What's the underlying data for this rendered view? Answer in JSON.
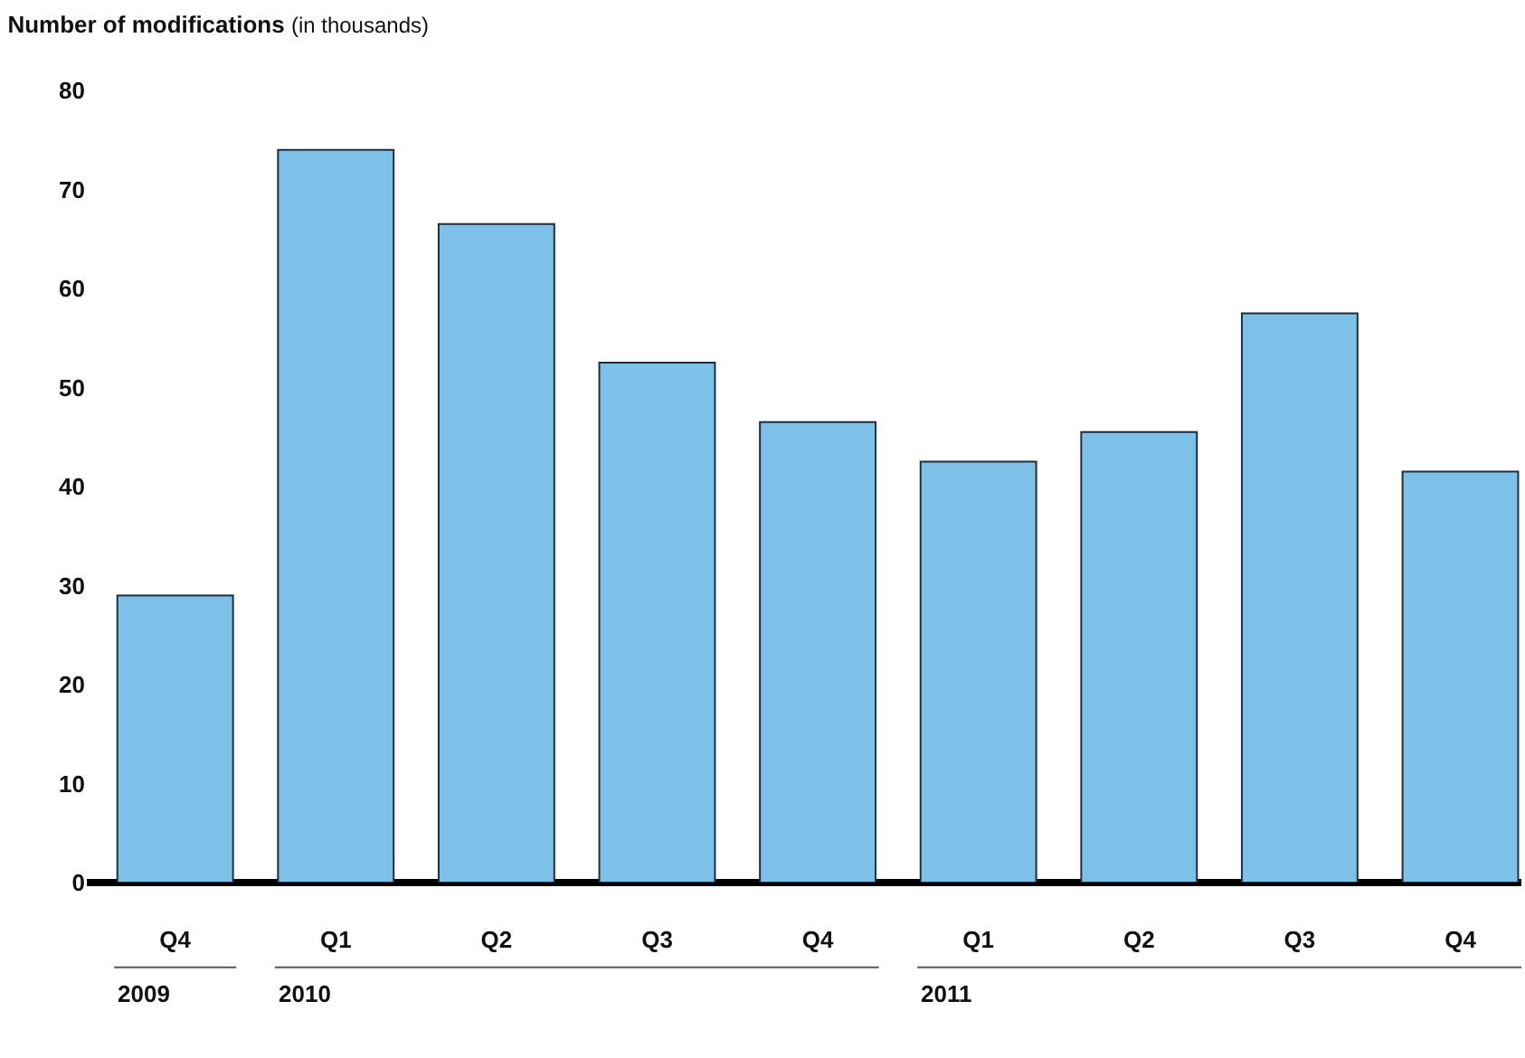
{
  "chart_data": {
    "type": "bar",
    "title": "Number of modifications",
    "subtitle": "(in thousands)",
    "categories": [
      "Q4",
      "Q1",
      "Q2",
      "Q3",
      "Q4",
      "Q1",
      "Q2",
      "Q3",
      "Q4"
    ],
    "values": [
      29,
      74,
      66.5,
      52.5,
      46.5,
      42.5,
      45.5,
      57.5,
      41.5
    ],
    "color": "#7dc1e8",
    "annotations": [
      "2009",
      "2010",
      "2011"
    ],
    "ylim": [
      0,
      80
    ],
    "yticks": [
      0,
      10,
      20,
      30,
      40,
      50,
      60,
      70,
      80
    ]
  }
}
